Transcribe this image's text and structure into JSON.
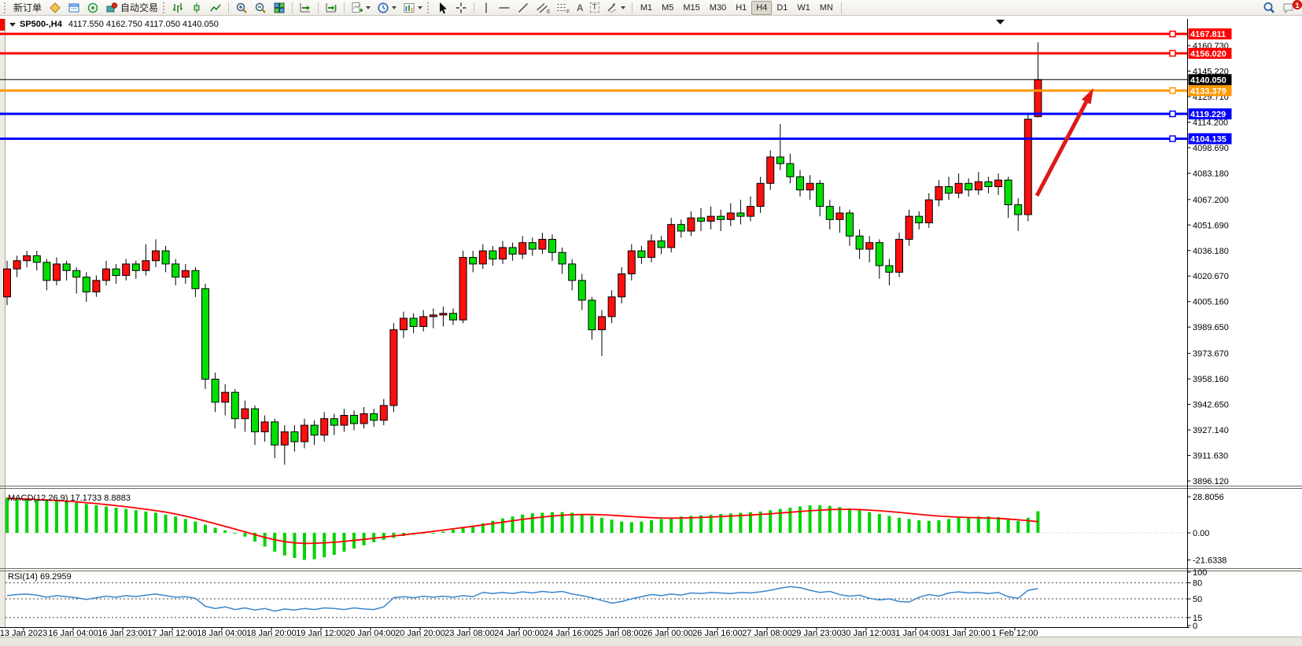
{
  "toolbar": {
    "new_order": "新订单",
    "auto_trading": "自动交易",
    "text_tool": "A",
    "label_tool": "T",
    "timeframes": [
      "M1",
      "M5",
      "M15",
      "M30",
      "H1",
      "H4",
      "D1",
      "W1",
      "MN"
    ],
    "active_timeframe": "H4",
    "notification_badge": "1",
    "icons": [
      "market-watch-icon",
      "data-window-icon",
      "navigator-icon",
      "autotrading-icon",
      "bar-chart-icon",
      "candlestick-chart-icon",
      "line-chart-icon",
      "zoom-in-icon",
      "zoom-out-icon",
      "tile-windows-icon",
      "auto-scroll-icon",
      "chart-shift-icon",
      "indicators-icon",
      "periods-icon",
      "templates-icon",
      "cursor-icon",
      "crosshair-icon",
      "vertical-line-icon",
      "horizontal-line-icon",
      "trendline-icon",
      "equidistant-channel-icon",
      "fibonacci-icon",
      "text-icon",
      "text-label-icon",
      "arrows-icon",
      "search-icon",
      "chat-icon"
    ]
  },
  "window": {
    "symbol_period": "SP500-,H4",
    "ohlc": "4117.550 4162.750 4117.050 4140.050"
  },
  "price_axis": {
    "ticks": [
      "4160.730",
      "4145.220",
      "4129.710",
      "4114.200",
      "4098.690",
      "4083.180",
      "4067.200",
      "4051.690",
      "4036.180",
      "4020.670",
      "4005.160",
      "3989.650",
      "3973.670",
      "3958.160",
      "3942.650",
      "3927.140",
      "3911.630",
      "3896.120"
    ]
  },
  "price_lines": [
    {
      "label": "4167.811",
      "value": 4167.811,
      "color": "#ff0000"
    },
    {
      "label": "4156.020",
      "value": 4156.02,
      "color": "#ff0000"
    },
    {
      "label": "4133.379",
      "value": 4133.379,
      "color": "#ff9900"
    },
    {
      "label": "4119.229",
      "value": 4119.229,
      "color": "#0000ff"
    },
    {
      "label": "4104.135",
      "value": 4104.135,
      "color": "#0000ff"
    }
  ],
  "current_price": {
    "label": "4140.050",
    "value": 4140.05,
    "color": "#000000"
  },
  "indicators": {
    "macd": {
      "label": "MACD(12,26,9) 17.1733 8.8883",
      "axis_labels": [
        "28.8056",
        "0.00",
        "-21.6338"
      ],
      "axis_values": [
        28.8056,
        0,
        -21.6338
      ]
    },
    "rsi": {
      "label": "RSI(14) 69.2959",
      "axis_labels": [
        "100",
        "80",
        "50",
        "15",
        "0"
      ],
      "axis_values": [
        100,
        80,
        50,
        15,
        0
      ],
      "levels": [
        80,
        50,
        15
      ]
    }
  },
  "annotation": {
    "arrow": {
      "from": [
        1318,
        249
      ],
      "to": [
        1390,
        112
      ],
      "color": "#e01818"
    }
  },
  "colors": {
    "bull": "#ff0e0e",
    "bear": "#00e000",
    "wick": "#000000",
    "macd_hist": "#00d400",
    "macd_signal": "#ff0000",
    "rsi_line": "#3a86cc"
  },
  "chart_data": {
    "type": "candlestick",
    "symbol": "SP500-",
    "period": "H4",
    "current_bar": {
      "open": 4117.55,
      "high": 4162.75,
      "low": 4117.05,
      "close": 4140.05
    },
    "ylim": [
      3893,
      4177
    ],
    "time_labels": [
      "13 Jan 2023",
      "16 Jan 04:00",
      "16 Jan 23:00",
      "17 Jan 12:00",
      "18 Jan 04:00",
      "18 Jan 20:00",
      "19 Jan 12:00",
      "20 Jan 04:00",
      "20 Jan 20:00",
      "23 Jan 08:00",
      "24 Jan 00:00",
      "24 Jan 16:00",
      "25 Jan 08:00",
      "26 Jan 00:00",
      "26 Jan 16:00",
      "27 Jan 08:00",
      "29 Jan 23:00",
      "30 Jan 12:00",
      "31 Jan 04:00",
      "31 Jan 20:00",
      "1 Feb 12:00"
    ],
    "bars_per_label": 5,
    "candles_ohlc": [
      [
        4008,
        4030,
        4003,
        4025
      ],
      [
        4025,
        4033,
        4020,
        4030
      ],
      [
        4030,
        4036,
        4026,
        4033
      ],
      [
        4033,
        4036,
        4024,
        4029
      ],
      [
        4029,
        4031,
        4012,
        4018
      ],
      [
        4018,
        4032,
        4015,
        4028
      ],
      [
        4028,
        4030,
        4018,
        4024
      ],
      [
        4024,
        4026,
        4010,
        4020
      ],
      [
        4020,
        4023,
        4005,
        4011
      ],
      [
        4011,
        4021,
        4008,
        4018
      ],
      [
        4018,
        4030,
        4015,
        4025
      ],
      [
        4025,
        4028,
        4016,
        4021
      ],
      [
        4021,
        4031,
        4018,
        4028
      ],
      [
        4028,
        4030,
        4019,
        4024
      ],
      [
        4024,
        4040,
        4021,
        4030
      ],
      [
        4030,
        4043,
        4026,
        4036
      ],
      [
        4036,
        4039,
        4023,
        4028
      ],
      [
        4028,
        4031,
        4015,
        4020
      ],
      [
        4020,
        4028,
        4016,
        4024
      ],
      [
        4024,
        4026,
        4008,
        4013
      ],
      [
        4013,
        4016,
        3952,
        3958
      ],
      [
        3958,
        3962,
        3938,
        3944
      ],
      [
        3944,
        3955,
        3936,
        3950
      ],
      [
        3950,
        3952,
        3928,
        3934
      ],
      [
        3934,
        3945,
        3926,
        3940
      ],
      [
        3940,
        3942,
        3918,
        3926
      ],
      [
        3926,
        3936,
        3920,
        3932
      ],
      [
        3932,
        3934,
        3910,
        3918
      ],
      [
        3918,
        3930,
        3906,
        3926
      ],
      [
        3926,
        3930,
        3914,
        3920
      ],
      [
        3920,
        3934,
        3916,
        3930
      ],
      [
        3930,
        3933,
        3918,
        3924
      ],
      [
        3924,
        3938,
        3920,
        3934
      ],
      [
        3934,
        3937,
        3924,
        3930
      ],
      [
        3930,
        3940,
        3926,
        3936
      ],
      [
        3936,
        3939,
        3927,
        3931
      ],
      [
        3931,
        3941,
        3928,
        3937
      ],
      [
        3937,
        3940,
        3929,
        3933
      ],
      [
        3933,
        3946,
        3930,
        3942
      ],
      [
        3942,
        3992,
        3938,
        3988
      ],
      [
        3988,
        3999,
        3983,
        3995
      ],
      [
        3995,
        3998,
        3986,
        3990
      ],
      [
        3990,
        4000,
        3987,
        3996
      ],
      [
        3996,
        4001,
        3989,
        3997
      ],
      [
        3997,
        4002,
        3990,
        3998
      ],
      [
        3998,
        4001,
        3991,
        3994
      ],
      [
        3994,
        4036,
        3992,
        4032
      ],
      [
        4032,
        4036,
        4023,
        4028
      ],
      [
        4028,
        4040,
        4025,
        4036
      ],
      [
        4036,
        4039,
        4027,
        4031
      ],
      [
        4031,
        4042,
        4028,
        4038
      ],
      [
        4038,
        4041,
        4030,
        4034
      ],
      [
        4034,
        4045,
        4031,
        4041
      ],
      [
        4041,
        4044,
        4033,
        4037
      ],
      [
        4037,
        4047,
        4034,
        4043
      ],
      [
        4043,
        4046,
        4030,
        4035
      ],
      [
        4035,
        4038,
        4022,
        4028
      ],
      [
        4028,
        4031,
        4012,
        4018
      ],
      [
        4018,
        4022,
        4000,
        4006
      ],
      [
        4006,
        4008,
        3982,
        3988
      ],
      [
        3988,
        4000,
        3972,
        3996
      ],
      [
        3996,
        4012,
        3992,
        4008
      ],
      [
        4008,
        4026,
        4004,
        4022
      ],
      [
        4022,
        4040,
        4018,
        4036
      ],
      [
        4036,
        4039,
        4028,
        4032
      ],
      [
        4032,
        4046,
        4029,
        4042
      ],
      [
        4042,
        4045,
        4034,
        4038
      ],
      [
        4038,
        4056,
        4035,
        4052
      ],
      [
        4052,
        4055,
        4044,
        4048
      ],
      [
        4048,
        4060,
        4045,
        4056
      ],
      [
        4056,
        4062,
        4048,
        4054
      ],
      [
        4054,
        4063,
        4049,
        4057
      ],
      [
        4057,
        4061,
        4048,
        4055
      ],
      [
        4055,
        4065,
        4051,
        4059
      ],
      [
        4059,
        4067,
        4052,
        4057
      ],
      [
        4057,
        4069,
        4054,
        4063
      ],
      [
        4063,
        4081,
        4059,
        4077
      ],
      [
        4077,
        4097,
        4073,
        4093
      ],
      [
        4093,
        4113,
        4085,
        4089
      ],
      [
        4089,
        4095,
        4077,
        4081
      ],
      [
        4081,
        4085,
        4069,
        4073
      ],
      [
        4073,
        4082,
        4067,
        4077
      ],
      [
        4077,
        4079,
        4057,
        4063
      ],
      [
        4063,
        4067,
        4049,
        4055
      ],
      [
        4055,
        4063,
        4047,
        4059
      ],
      [
        4059,
        4061,
        4039,
        4045
      ],
      [
        4045,
        4049,
        4031,
        4037
      ],
      [
        4037,
        4045,
        4029,
        4041
      ],
      [
        4041,
        4043,
        4019,
        4027
      ],
      [
        4027,
        4031,
        4015,
        4023
      ],
      [
        4023,
        4047,
        4020,
        4043
      ],
      [
        4043,
        4061,
        4039,
        4057
      ],
      [
        4057,
        4060,
        4049,
        4053
      ],
      [
        4053,
        4071,
        4050,
        4067
      ],
      [
        4067,
        4079,
        4063,
        4075
      ],
      [
        4075,
        4081,
        4067,
        4071
      ],
      [
        4071,
        4083,
        4068,
        4077
      ],
      [
        4077,
        4080,
        4069,
        4073
      ],
      [
        4073,
        4084,
        4070,
        4078
      ],
      [
        4078,
        4081,
        4071,
        4075
      ],
      [
        4075,
        4083,
        4070,
        4079
      ],
      [
        4079,
        4081,
        4056,
        4064
      ],
      [
        4064,
        4068,
        4048,
        4058
      ],
      [
        4058,
        4119,
        4054,
        4116
      ],
      [
        4117.55,
        4162.75,
        4117.05,
        4140.05
      ]
    ],
    "macd_histogram": [
      28,
      27.5,
      27,
      26.5,
      26,
      25.5,
      25,
      24,
      23,
      22,
      21,
      20,
      19,
      18,
      17,
      16,
      14.5,
      13,
      11,
      9,
      6.5,
      4,
      2,
      0,
      -3,
      -7,
      -11,
      -15,
      -18,
      -20,
      -21.6,
      -21,
      -19.5,
      -17.5,
      -15,
      -12.5,
      -10,
      -7.5,
      -5.5,
      -4,
      -2.5,
      -1.5,
      -0.5,
      0,
      1,
      2.5,
      4,
      5.5,
      7.5,
      9.5,
      11.5,
      13,
      14.5,
      15.5,
      16,
      16.5,
      16.5,
      16,
      15,
      13.5,
      12,
      10.5,
      9,
      8.5,
      9,
      10,
      11,
      12,
      13,
      13.5,
      14,
      14.5,
      15,
      15.5,
      16,
      16.5,
      17,
      18,
      19,
      20,
      21,
      21.8,
      22,
      21.5,
      20.5,
      19.5,
      18,
      16.5,
      15,
      13.5,
      12,
      11,
      10,
      9.5,
      10,
      11,
      12,
      12.5,
      13,
      13,
      12.5,
      11,
      9.5,
      12,
      17.1733
    ],
    "macd_signal": [
      27.5,
      27.2,
      27,
      26.6,
      26.2,
      25.8,
      25.3,
      24.7,
      24,
      23.3,
      22.5,
      21.7,
      20.8,
      19.8,
      18.8,
      17.7,
      16.5,
      15,
      13.3,
      11.4,
      9.4,
      7.3,
      5.2,
      3,
      0.8,
      -1.5,
      -3.6,
      -5.5,
      -7,
      -8,
      -8.4,
      -8.3,
      -8,
      -7.5,
      -6.8,
      -6,
      -5.2,
      -4.3,
      -3.4,
      -2.5,
      -1.6,
      -0.7,
      0.2,
      1.2,
      2.2,
      3.2,
      4.2,
      5.2,
      6.3,
      7.4,
      8.5,
      9.6,
      10.7,
      11.7,
      12.6,
      13.4,
      14,
      14.4,
      14.6,
      14.6,
      14.4,
      14,
      13.5,
      13,
      12.5,
      12.1,
      11.8,
      11.7,
      11.8,
      12,
      12.3,
      12.6,
      13,
      13.4,
      13.8,
      14.2,
      14.7,
      15.2,
      15.8,
      16.4,
      17,
      17.6,
      18.1,
      18.5,
      18.7,
      18.7,
      18.5,
      18.1,
      17.6,
      17,
      16.3,
      15.5,
      14.7,
      14,
      13.4,
      12.9,
      12.5,
      12.2,
      12,
      11.8,
      11.5,
      11,
      10.4,
      9.7,
      8.8883
    ],
    "rsi": [
      56,
      58,
      59,
      57,
      53,
      56,
      54,
      52,
      49,
      52,
      55,
      53,
      56,
      54,
      57,
      59,
      56,
      53,
      54,
      51,
      36,
      32,
      35,
      30,
      33,
      29,
      32,
      27,
      31,
      29,
      32,
      30,
      33,
      32,
      30,
      33,
      31,
      30,
      35,
      52,
      54,
      52,
      55,
      53,
      55,
      53,
      56,
      54,
      62,
      60,
      62,
      60,
      63,
      61,
      64,
      62,
      64,
      59,
      56,
      52,
      47,
      42,
      45,
      50,
      54,
      58,
      56,
      59,
      57,
      61,
      60,
      62,
      61,
      60,
      62,
      61,
      63,
      66,
      70,
      73,
      71,
      66,
      62,
      64,
      58,
      55,
      57,
      51,
      48,
      50,
      45,
      44,
      53,
      58,
      55,
      61,
      63,
      61,
      62,
      60,
      62,
      54,
      51,
      66,
      69.2959
    ],
    "hlines": [
      4167.811,
      4156.02,
      4133.379,
      4119.229,
      4104.135
    ]
  }
}
